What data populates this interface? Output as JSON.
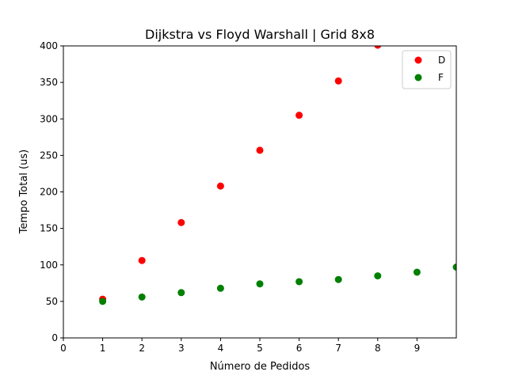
{
  "chart_data": {
    "type": "scatter",
    "title": "Dijkstra vs Floyd Warshall | Grid 8x8",
    "xlabel": "Número de Pedidos",
    "ylabel": "Tempo Total (us)",
    "xlim": [
      0,
      10
    ],
    "ylim": [
      0,
      400
    ],
    "xticks": [
      0,
      1,
      2,
      3,
      4,
      5,
      6,
      7,
      8,
      9
    ],
    "yticks": [
      0,
      50,
      100,
      150,
      200,
      250,
      300,
      350,
      400
    ],
    "grid": false,
    "legend": "top-right",
    "series": [
      {
        "name": "D",
        "color": "#ff0000",
        "x": [
          1,
          2,
          3,
          4,
          5,
          6,
          7,
          8
        ],
        "y": [
          53,
          106,
          158,
          208,
          257,
          305,
          352,
          401
        ]
      },
      {
        "name": "F",
        "color": "#008000",
        "x": [
          1,
          2,
          3,
          4,
          5,
          6,
          7,
          8,
          9,
          10
        ],
        "y": [
          50,
          56,
          62,
          68,
          74,
          77,
          80,
          85,
          90,
          97
        ]
      }
    ]
  }
}
